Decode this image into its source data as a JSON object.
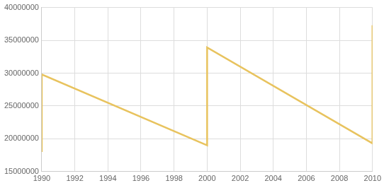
{
  "chart_data": {
    "type": "line",
    "x": [
      1990,
      1990,
      2000,
      2000,
      2010,
      2010
    ],
    "values": [
      18000000,
      29800000,
      19000000,
      33900000,
      19300000,
      37300000
    ],
    "color": "#e8c35e",
    "xlim": [
      1990,
      2010
    ],
    "xticks": [
      1990,
      1992,
      1994,
      1996,
      1998,
      2000,
      2002,
      2004,
      2006,
      2008,
      2010
    ],
    "ylim": [
      15000000,
      40000000
    ],
    "yticks": [
      15000000,
      20000000,
      25000000,
      30000000,
      35000000,
      40000000
    ],
    "grid": true
  }
}
